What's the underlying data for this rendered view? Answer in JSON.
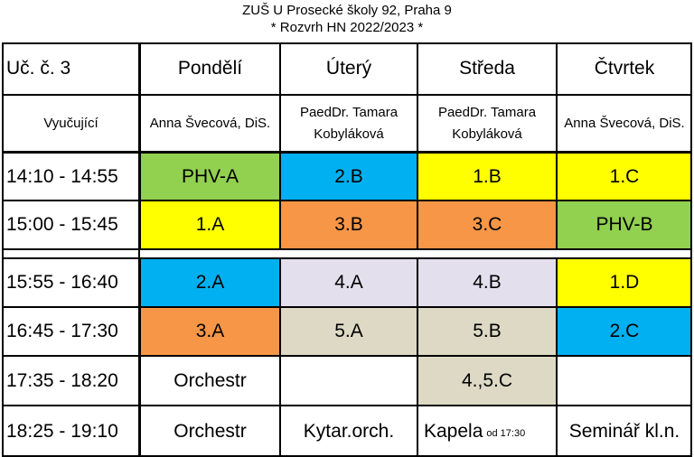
{
  "header": {
    "school": "ZUŠ U Prosecké školy 92, Praha 9",
    "subtitle": "* Rozvrh HN 2022/2023 *"
  },
  "table": {
    "corner": "Uč. č. 3",
    "days": [
      "Pondělí",
      "Úterý",
      "Středa",
      "Čtvrtek"
    ],
    "teacher_label": "Vyučující",
    "teachers": [
      "Anna Švecová, DiS.",
      "PaedDr. Tamara Kobyláková",
      "PaedDr. Tamara Kobyláková",
      "Anna Švecová, DiS."
    ],
    "rows": [
      {
        "time": "14:10 - 14:55",
        "cells": [
          "PHV-A",
          "2.B",
          "1.B",
          "1.C"
        ]
      },
      {
        "time": "15:00 - 15:45",
        "cells": [
          "1.A",
          "3.B",
          "3.C",
          "PHV-B"
        ]
      },
      {
        "time": "15:55 - 16:40",
        "cells": [
          "2.A",
          "4.A",
          "4.B",
          "1.D"
        ]
      },
      {
        "time": "16:45 - 17:30",
        "cells": [
          "3.A",
          "5.A",
          "5.B",
          "2.C"
        ]
      },
      {
        "time": "17:35 - 18:20",
        "cells": [
          "Orchestr",
          "",
          "4.,5.C",
          ""
        ]
      },
      {
        "time": "18:25 - 19:10",
        "cells": [
          "Orchestr",
          "Kytar.orch.",
          "Kapela",
          "Seminář kl.n."
        ],
        "note": "od 17:30"
      }
    ]
  },
  "colors": {
    "green": "#92d050",
    "blue": "#00b0f0",
    "yellow": "#ffff00",
    "orange": "#f79646",
    "lavender": "#e4dfec",
    "beige": "#ddd9c4",
    "white": "#ffffff"
  },
  "cell_colors": [
    [
      "green",
      "blue",
      "yellow",
      "yellow"
    ],
    [
      "yellow",
      "orange",
      "orange",
      "green"
    ],
    [
      "blue",
      "lavender",
      "lavender",
      "yellow"
    ],
    [
      "orange",
      "beige",
      "beige",
      "blue"
    ],
    [
      "white",
      "white",
      "beige",
      "white"
    ],
    [
      "white",
      "white",
      "white",
      "white"
    ]
  ]
}
